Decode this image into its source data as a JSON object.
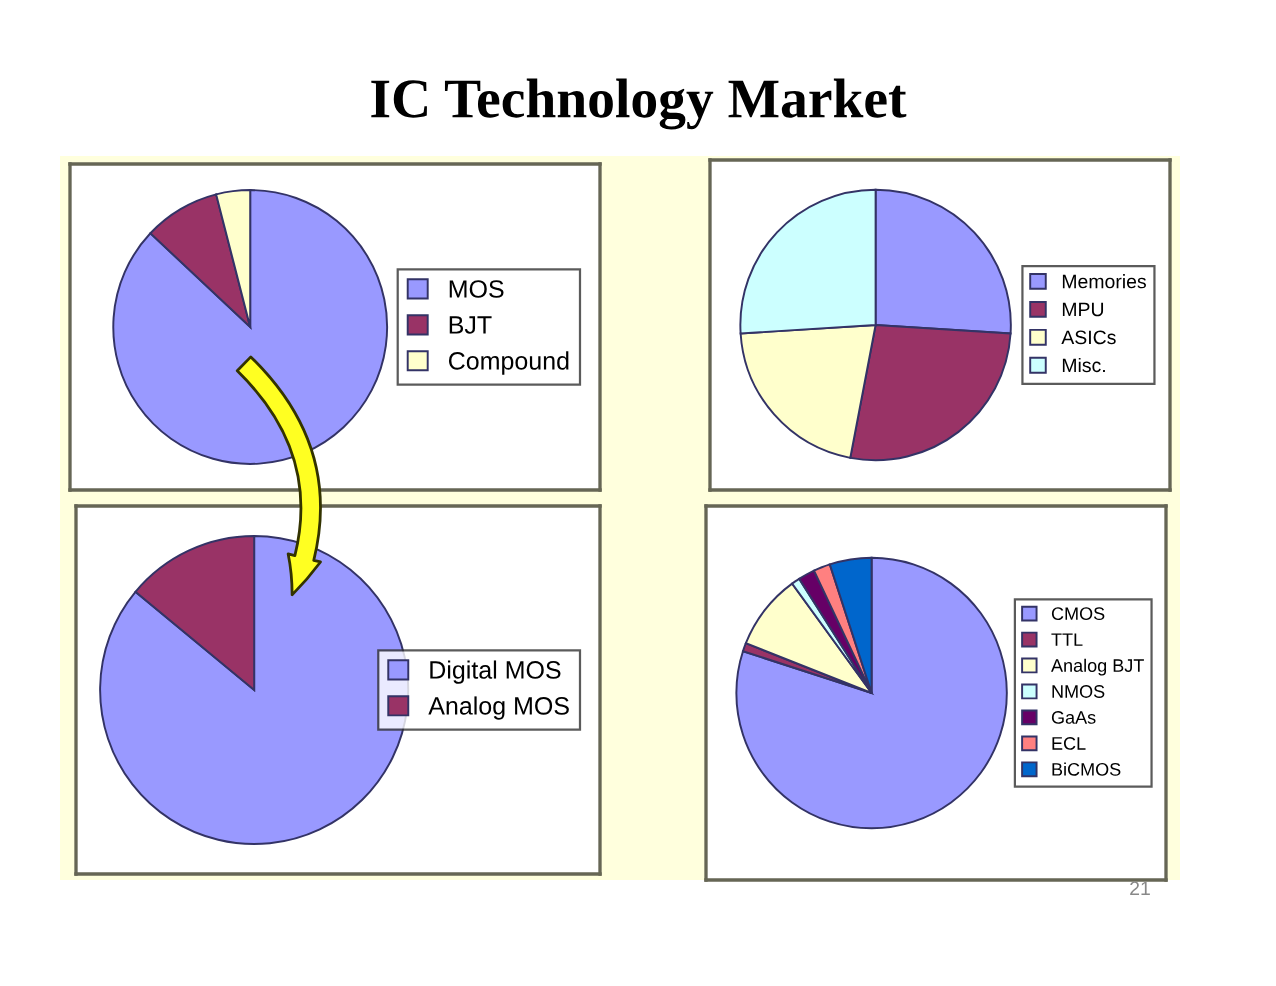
{
  "chart_data": [
    {
      "type": "pie",
      "title": "IC Technology Market",
      "categories": [
        "MOS",
        "BJT",
        "Compound"
      ],
      "values": [
        87,
        9,
        4
      ],
      "colors": [
        "#9999ff",
        "#993366",
        "#ffffcc"
      ],
      "legend": "right"
    },
    {
      "type": "pie",
      "categories": [
        "Memories",
        "MPU",
        "ASICs",
        "Misc."
      ],
      "values": [
        26,
        27,
        21,
        26
      ],
      "colors": [
        "#9999ff",
        "#993366",
        "#ffffcc",
        "#ccffff"
      ],
      "legend": "right"
    },
    {
      "type": "pie",
      "categories": [
        "Digital MOS",
        "Analog MOS"
      ],
      "values": [
        86,
        14
      ],
      "colors": [
        "#9999ff",
        "#993366"
      ],
      "legend": "right"
    },
    {
      "type": "pie",
      "categories": [
        "CMOS",
        "TTL",
        "Analog BJT",
        "NMOS",
        "GaAs",
        "ECL",
        "BiCMOS"
      ],
      "values": [
        80,
        1,
        9,
        1,
        2,
        2,
        5
      ],
      "colors": [
        "#9999ff",
        "#993366",
        "#ffffcc",
        "#ccffff",
        "#660066",
        "#ff8080",
        "#0066cc"
      ],
      "legend": "right",
      "annotations": [
        "21"
      ]
    }
  ]
}
